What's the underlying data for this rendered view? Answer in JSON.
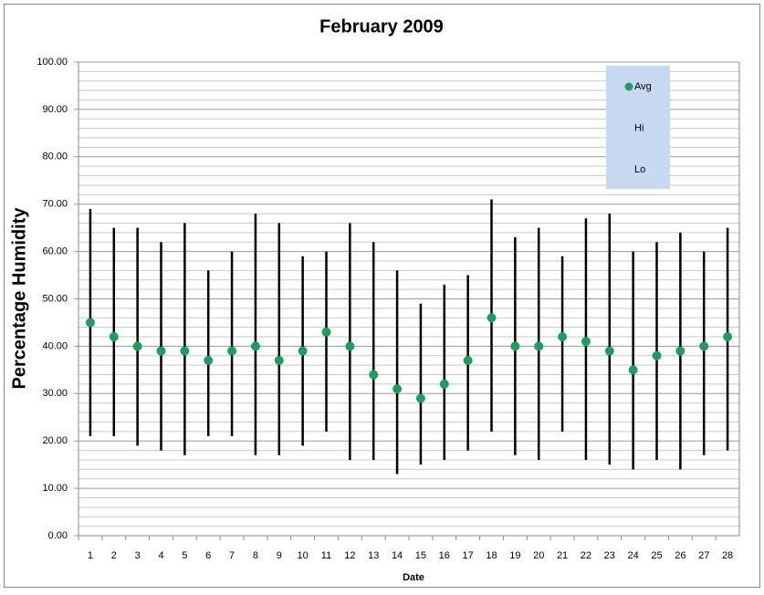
{
  "chart_data": {
    "type": "hilo",
    "title": "February 2009",
    "x_label": "Date",
    "y_label": "Percentage Humidity",
    "categories": [
      "1",
      "2",
      "3",
      "4",
      "5",
      "6",
      "7",
      "8",
      "9",
      "10",
      "11",
      "12",
      "13",
      "14",
      "15",
      "16",
      "17",
      "18",
      "19",
      "20",
      "21",
      "22",
      "23",
      "24",
      "25",
      "26",
      "27",
      "28"
    ],
    "series": [
      {
        "name": "Hi",
        "values": [
          69,
          65,
          65,
          62,
          66,
          56,
          60,
          68,
          66,
          59,
          60,
          66,
          62,
          56,
          49,
          53,
          55,
          71,
          63,
          65,
          59,
          67,
          68,
          60,
          62,
          64,
          60,
          65
        ]
      },
      {
        "name": "Lo",
        "values": [
          21,
          21,
          19,
          18,
          17,
          21,
          21,
          17,
          17,
          19,
          22,
          16,
          16,
          13,
          15,
          16,
          18,
          22,
          17,
          16,
          22,
          16,
          15,
          14,
          16,
          14,
          17,
          18
        ]
      },
      {
        "name": "Avg",
        "color": "#1e9e5e",
        "values": [
          45,
          42,
          40,
          39,
          39,
          37,
          39,
          40,
          37,
          39,
          43,
          40,
          34,
          31,
          29,
          32,
          37,
          46,
          40,
          40,
          42,
          41,
          39,
          35,
          38,
          39,
          40,
          42
        ]
      }
    ],
    "ylim": [
      0,
      100
    ],
    "yticks": [
      {
        "value": 0,
        "label": "0.00"
      },
      {
        "value": 10,
        "label": "10.00"
      },
      {
        "value": 20,
        "label": "20.00"
      },
      {
        "value": 30,
        "label": "30.00"
      },
      {
        "value": 40,
        "label": "40.00"
      },
      {
        "value": 50,
        "label": "50.00"
      },
      {
        "value": 60,
        "label": "60.00"
      },
      {
        "value": 70,
        "label": "70.00"
      },
      {
        "value": 80,
        "label": "80.00"
      },
      {
        "value": 90,
        "label": "90.00"
      },
      {
        "value": 100,
        "label": "100.00"
      }
    ],
    "minor_yticks": [
      2,
      4,
      6,
      8,
      12,
      14,
      16,
      18,
      22,
      24,
      26,
      28,
      32,
      34,
      36,
      38,
      42,
      44,
      46,
      48,
      52,
      54,
      56,
      58,
      62,
      64,
      66,
      68,
      72,
      74,
      76,
      78,
      82,
      84,
      86,
      88,
      92,
      94,
      96,
      98
    ],
    "grid": true,
    "legend": "top-right"
  }
}
